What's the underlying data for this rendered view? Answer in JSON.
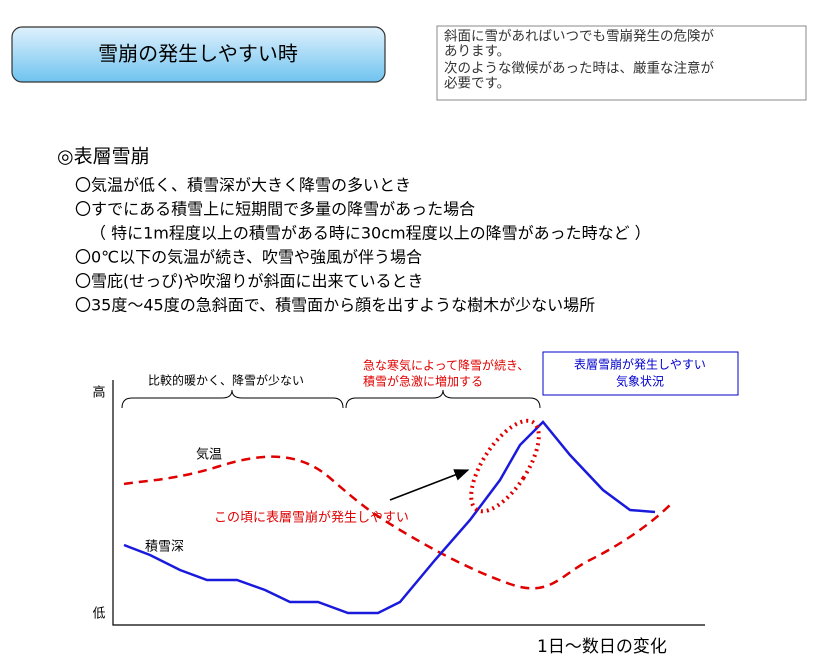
{
  "header": {
    "title": "雪崩の発生しやすい時",
    "note": [
      "斜面に雪があればいつでも雪崩発生の危険が",
      "あります。",
      "次のような徴候があった時は、厳重な注意が",
      "必要です。"
    ]
  },
  "section": {
    "heading": "◎表層雪崩",
    "items": [
      "〇気温が低く、積雪深が大きく降雪の多いとき",
      "〇すでにある積雪上に短期間で多量の降雪があった場合",
      "（ 特に1m程度以上の積雪がある時に30cm程度以上の降雪があった時など ）",
      "〇0℃以下の気温が続き、吹雪や強風が伴う場合",
      "〇雪庇(せっぴ)や吹溜りが斜面に出来ているとき",
      "〇35度～45度の急斜面で、積雪面から顔を出すような樹木が少ない場所"
    ]
  },
  "diagram": {
    "y_high": "高",
    "y_low": "低",
    "x_label": "1日～数日の変化",
    "phase1": "比較的暖かく、降雪が少ない",
    "phase2": [
      "急な寒気によって降雪が続き、",
      "積雪が急激に増加する"
    ],
    "box": [
      "表層雪崩が発生しやすい",
      "気象状況"
    ],
    "temperature": "気温",
    "snow_depth": "積雪深",
    "callout": "この頃に表層雪崩が発生しやすい"
  }
}
